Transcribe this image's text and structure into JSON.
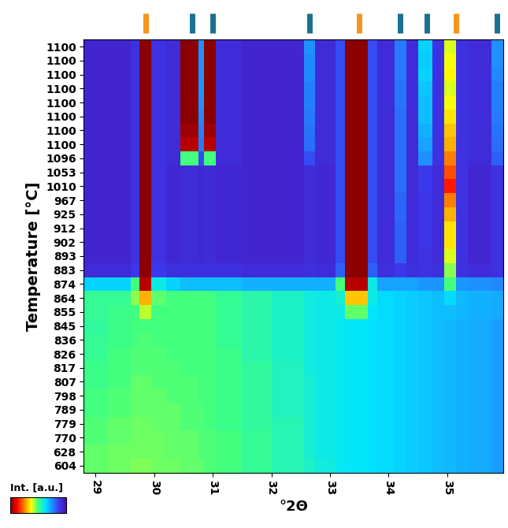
{
  "chart_data": {
    "type": "heatmap",
    "x_label": "°2Θ",
    "y_label": "Temperature [°C]",
    "xlim": [
      28.8,
      35.95
    ],
    "xticks": [
      29,
      30,
      31,
      32,
      33,
      34,
      35
    ],
    "x_edges": [
      28.8,
      29.2,
      29.6,
      29.75,
      29.95,
      30.2,
      30.45,
      30.75,
      30.85,
      31.05,
      31.5,
      32.0,
      32.55,
      32.75,
      33.1,
      33.25,
      33.65,
      33.8,
      34.1,
      34.3,
      34.5,
      34.75,
      34.95,
      35.15,
      35.35,
      35.75,
      35.95
    ],
    "categories": [
      "1100",
      "1100",
      "1100",
      "1100",
      "1100",
      "1100",
      "1100",
      "1100",
      "1096",
      "1053",
      "1010",
      "967",
      "925",
      "912",
      "902",
      "893",
      "883",
      "874",
      "864",
      "855",
      "845",
      "836",
      "826",
      "817",
      "807",
      "798",
      "789",
      "779",
      "770",
      "628",
      "604"
    ],
    "cells": [
      [
        0.6,
        0.6,
        1.0,
        10,
        1.0,
        0.8,
        10,
        2.5,
        10,
        0.8,
        0.6,
        0.6,
        2.5,
        0.8,
        1.5,
        10,
        1.5,
        0.8,
        2.2,
        0.8,
        3.5,
        1.0,
        6.0,
        1.0,
        0.8,
        2.5
      ],
      [
        0.6,
        0.6,
        1.0,
        10,
        1.0,
        0.8,
        10,
        2.5,
        10,
        0.8,
        0.6,
        0.6,
        2.4,
        0.8,
        1.5,
        10,
        1.5,
        0.8,
        2.2,
        0.8,
        3.4,
        1.0,
        6.2,
        1.0,
        0.8,
        2.5
      ],
      [
        0.6,
        0.6,
        1.0,
        10,
        1.0,
        0.8,
        10,
        2.5,
        10,
        0.8,
        0.6,
        0.6,
        2.4,
        0.8,
        1.5,
        10,
        1.5,
        0.8,
        2.2,
        0.8,
        3.5,
        1.0,
        6.3,
        1.0,
        0.8,
        2.4
      ],
      [
        0.6,
        0.6,
        1.0,
        10,
        1.0,
        0.8,
        10,
        2.6,
        10,
        0.8,
        0.6,
        0.6,
        2.3,
        0.8,
        1.5,
        10,
        1.5,
        0.8,
        2.1,
        0.8,
        3.3,
        1.0,
        6.0,
        1.0,
        0.8,
        2.3
      ],
      [
        0.6,
        0.6,
        1.0,
        10,
        1.0,
        0.8,
        10,
        2.5,
        10,
        0.8,
        0.6,
        0.6,
        2.3,
        0.8,
        1.5,
        10,
        1.5,
        0.8,
        2.1,
        0.8,
        3.2,
        1.0,
        6.2,
        1.0,
        0.8,
        2.3
      ],
      [
        0.6,
        0.6,
        1.0,
        10,
        1.0,
        0.8,
        10,
        2.4,
        10,
        0.8,
        0.6,
        0.6,
        2.2,
        0.8,
        1.5,
        10,
        1.5,
        0.8,
        2.0,
        0.8,
        3.2,
        1.0,
        6.5,
        1.0,
        0.8,
        2.2
      ],
      [
        0.6,
        0.6,
        1.0,
        10,
        1.0,
        0.8,
        9.8,
        2.3,
        9.8,
        0.8,
        0.6,
        0.6,
        2.1,
        0.8,
        1.5,
        10,
        1.5,
        0.8,
        2.0,
        0.8,
        3.0,
        1.0,
        6.8,
        1.0,
        0.8,
        2.1
      ],
      [
        0.6,
        0.6,
        1.0,
        10,
        1.0,
        0.8,
        9.5,
        2.2,
        9.5,
        0.8,
        0.6,
        0.6,
        2.0,
        0.8,
        1.5,
        10,
        1.5,
        0.8,
        2.0,
        0.8,
        2.8,
        1.0,
        7.0,
        1.0,
        0.8,
        2.0
      ],
      [
        0.6,
        0.6,
        1.0,
        10,
        1.0,
        0.8,
        5.0,
        1.5,
        5.0,
        0.8,
        0.6,
        0.6,
        1.5,
        0.8,
        1.5,
        10,
        1.5,
        0.8,
        2.0,
        0.8,
        2.5,
        1.0,
        7.5,
        1.0,
        0.8,
        1.8
      ],
      [
        0.6,
        0.6,
        1.0,
        10,
        1.0,
        0.7,
        0.8,
        0.7,
        0.8,
        0.7,
        0.6,
        0.6,
        0.8,
        0.7,
        1.5,
        10,
        1.5,
        0.8,
        2.0,
        0.8,
        1.2,
        0.8,
        8.0,
        1.0,
        0.7,
        1.0
      ],
      [
        0.6,
        0.6,
        1.0,
        10,
        1.0,
        0.7,
        0.8,
        0.7,
        0.8,
        0.7,
        0.6,
        0.6,
        0.8,
        0.7,
        1.5,
        10,
        1.5,
        0.8,
        2.0,
        0.8,
        1.2,
        0.8,
        8.5,
        1.0,
        0.7,
        1.0
      ],
      [
        0.6,
        0.6,
        1.0,
        10,
        1.0,
        0.7,
        0.8,
        0.7,
        0.8,
        0.7,
        0.6,
        0.6,
        0.8,
        0.7,
        1.5,
        10,
        1.5,
        0.8,
        1.9,
        0.8,
        1.1,
        0.8,
        7.5,
        1.0,
        0.7,
        1.0
      ],
      [
        0.6,
        0.6,
        1.0,
        10,
        1.0,
        0.7,
        0.8,
        0.7,
        0.8,
        0.7,
        0.6,
        0.6,
        0.8,
        0.7,
        1.5,
        10,
        1.5,
        0.8,
        1.9,
        0.8,
        1.1,
        0.8,
        7.0,
        1.0,
        0.7,
        1.0
      ],
      [
        0.6,
        0.6,
        1.0,
        10,
        1.0,
        0.7,
        0.8,
        0.7,
        0.8,
        0.7,
        0.6,
        0.6,
        0.8,
        0.7,
        1.5,
        10,
        1.5,
        0.8,
        1.8,
        0.8,
        1.1,
        0.8,
        6.5,
        1.0,
        0.7,
        1.0
      ],
      [
        0.6,
        0.6,
        1.0,
        10,
        1.0,
        0.7,
        0.8,
        0.7,
        0.8,
        0.7,
        0.6,
        0.6,
        0.8,
        0.7,
        1.5,
        10,
        1.5,
        0.8,
        1.8,
        0.8,
        1.1,
        0.8,
        6.5,
        1.0,
        0.7,
        1.0
      ],
      [
        0.6,
        0.6,
        1.0,
        10,
        1.0,
        0.7,
        0.8,
        0.7,
        0.8,
        0.7,
        0.6,
        0.6,
        0.8,
        0.7,
        1.5,
        10,
        1.5,
        0.8,
        1.8,
        0.8,
        1.0,
        0.8,
        6.0,
        1.0,
        0.7,
        1.0
      ],
      [
        0.8,
        0.8,
        1.2,
        10,
        1.2,
        0.9,
        0.9,
        0.9,
        0.9,
        0.9,
        0.8,
        0.8,
        0.9,
        0.8,
        1.8,
        10,
        1.8,
        0.9,
        1.2,
        0.9,
        1.0,
        0.9,
        5.5,
        1.0,
        0.8,
        1.0
      ],
      [
        3.5,
        3.5,
        5.0,
        9.5,
        4.0,
        3.5,
        3.2,
        3.2,
        3.2,
        3.2,
        3.0,
        3.0,
        3.0,
        3.0,
        5.0,
        9.5,
        4.0,
        2.8,
        2.8,
        2.8,
        2.6,
        2.6,
        5.0,
        2.6,
        2.5,
        2.4
      ],
      [
        4.8,
        4.8,
        5.5,
        7.0,
        5.2,
        5.0,
        5.0,
        5.0,
        5.0,
        4.8,
        4.6,
        4.3,
        4.1,
        4.0,
        4.2,
        6.8,
        4.0,
        3.6,
        3.5,
        3.4,
        3.3,
        3.2,
        3.6,
        3.1,
        3.0,
        2.9
      ],
      [
        4.8,
        4.9,
        5.0,
        5.8,
        5.0,
        5.0,
        5.0,
        5.0,
        5.0,
        4.8,
        4.6,
        4.3,
        4.1,
        4.0,
        4.0,
        5.2,
        3.8,
        3.6,
        3.5,
        3.4,
        3.3,
        3.2,
        3.2,
        3.1,
        3.0,
        2.9
      ],
      [
        4.7,
        4.9,
        5.0,
        5.0,
        5.0,
        5.0,
        5.0,
        5.0,
        5.0,
        4.8,
        4.6,
        4.3,
        4.1,
        4.0,
        3.9,
        3.8,
        3.7,
        3.6,
        3.5,
        3.4,
        3.3,
        3.2,
        3.1,
        3.0,
        2.9,
        2.7
      ],
      [
        4.8,
        4.9,
        5.0,
        5.1,
        5.0,
        5.0,
        5.0,
        5.0,
        5.0,
        4.8,
        4.6,
        4.3,
        4.1,
        4.0,
        3.9,
        3.8,
        3.7,
        3.6,
        3.5,
        3.4,
        3.3,
        3.2,
        3.1,
        3.0,
        2.9,
        2.7
      ],
      [
        4.8,
        5.0,
        5.1,
        5.1,
        5.1,
        5.0,
        5.0,
        5.0,
        5.0,
        4.9,
        4.6,
        4.3,
        4.1,
        4.0,
        3.9,
        3.8,
        3.7,
        3.6,
        3.5,
        3.4,
        3.3,
        3.2,
        3.1,
        3.0,
        2.9,
        2.7
      ],
      [
        4.9,
        5.0,
        5.1,
        5.1,
        5.1,
        5.1,
        5.0,
        5.0,
        5.0,
        4.9,
        4.7,
        4.4,
        4.1,
        4.0,
        3.9,
        3.8,
        3.7,
        3.6,
        3.5,
        3.4,
        3.3,
        3.2,
        3.1,
        3.0,
        2.9,
        2.7
      ],
      [
        4.9,
        5.0,
        5.2,
        5.2,
        5.1,
        5.1,
        5.1,
        5.0,
        5.0,
        4.9,
        4.7,
        4.4,
        4.2,
        4.0,
        3.9,
        3.8,
        3.7,
        3.6,
        3.5,
        3.4,
        3.3,
        3.2,
        3.1,
        3.0,
        2.9,
        2.7
      ],
      [
        5.0,
        5.1,
        5.2,
        5.2,
        5.2,
        5.1,
        5.1,
        5.0,
        5.0,
        4.9,
        4.7,
        4.4,
        4.2,
        4.0,
        3.9,
        3.8,
        3.7,
        3.6,
        3.5,
        3.4,
        3.3,
        3.2,
        3.1,
        3.0,
        2.9,
        2.7
      ],
      [
        5.0,
        5.1,
        5.2,
        5.2,
        5.2,
        5.2,
        5.1,
        5.1,
        5.0,
        4.9,
        4.7,
        4.4,
        4.2,
        4.0,
        3.9,
        3.8,
        3.7,
        3.6,
        3.5,
        3.4,
        3.3,
        3.2,
        3.1,
        3.0,
        2.9,
        2.7
      ],
      [
        5.1,
        5.2,
        5.3,
        5.3,
        5.2,
        5.2,
        5.1,
        5.1,
        5.0,
        4.9,
        4.7,
        4.5,
        4.2,
        4.0,
        3.9,
        3.8,
        3.7,
        3.6,
        3.5,
        3.4,
        3.3,
        3.2,
        3.1,
        3.0,
        2.9,
        2.7
      ],
      [
        5.1,
        5.2,
        5.3,
        5.3,
        5.3,
        5.2,
        5.2,
        5.1,
        5.1,
        5.0,
        4.8,
        4.5,
        4.2,
        4.0,
        3.9,
        3.8,
        3.7,
        3.6,
        3.5,
        3.4,
        3.3,
        3.2,
        3.1,
        3.0,
        2.9,
        2.7
      ],
      [
        5.2,
        5.3,
        5.3,
        5.3,
        5.3,
        5.2,
        5.2,
        5.1,
        5.1,
        5.0,
        4.8,
        4.5,
        4.2,
        4.0,
        3.9,
        3.8,
        3.7,
        3.6,
        3.5,
        3.4,
        3.3,
        3.2,
        3.1,
        3.0,
        2.9,
        2.7
      ],
      [
        5.2,
        5.3,
        5.4,
        5.4,
        5.3,
        5.3,
        5.2,
        5.2,
        5.1,
        5.0,
        4.8,
        4.5,
        4.3,
        4.1,
        3.9,
        3.8,
        3.7,
        3.6,
        3.5,
        3.4,
        3.3,
        3.2,
        3.1,
        3.0,
        2.9,
        2.7
      ]
    ],
    "colorbar": {
      "label": "Int. [a.u.]",
      "range": [
        0,
        10
      ]
    },
    "reference_marks": [
      {
        "color": "#f7941d",
        "x": [
          29.85,
          33.5,
          35.15
        ]
      },
      {
        "color": "#1b6f8f",
        "x": [
          30.65,
          31.0,
          32.65,
          34.2,
          34.65,
          35.85
        ]
      }
    ]
  }
}
